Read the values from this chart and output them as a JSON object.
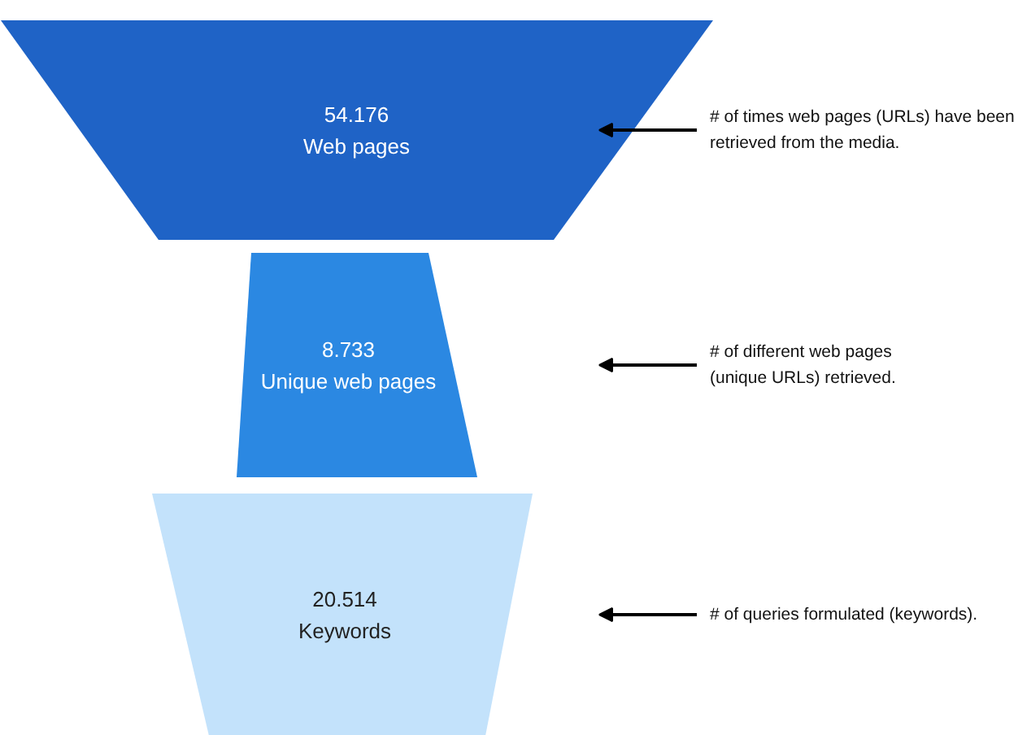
{
  "chart_data": {
    "type": "other",
    "categories": [
      "Web pages",
      "Unique web pages",
      "Keywords"
    ],
    "values": [
      54.176,
      8.733,
      20.514
    ],
    "data_labels": true,
    "colors": [
      "#1f63c6",
      "#2b88e2",
      "#c3e2fb"
    ],
    "annotations": [
      "# of times web pages (URLs) have been\nretrieved from the media.",
      "# of different web pages\n(unique URLs) retrieved.",
      "# of queries formulated (keywords)."
    ]
  }
}
